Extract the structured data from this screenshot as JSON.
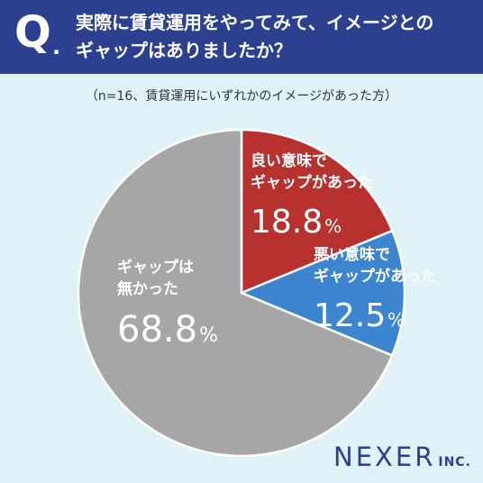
{
  "header": {
    "q_mark": "Q",
    "question_lines": [
      "実際に賃貸運用をやってみて、イメージとの",
      "ギャップはありましたか？"
    ]
  },
  "note": "（n=16、賃貸運用にいずれかのイメージがあった方）",
  "chart_data": {
    "type": "pie",
    "title": "実際に賃貸運用をやってみて、イメージとのギャップはありましたか？",
    "n": 16,
    "slices": [
      {
        "label_lines": [
          "良い意味で",
          "ギャップがあった"
        ],
        "value": 18.8,
        "display": "18.8",
        "unit": "%",
        "color": "#b7312f"
      },
      {
        "label_lines": [
          "悪い意味で",
          "ギャップがあった"
        ],
        "value": 12.5,
        "display": "12.5",
        "unit": "%",
        "color": "#3d86cf"
      },
      {
        "label_lines": [
          "ギャップは",
          "無かった"
        ],
        "value": 68.8,
        "display": "68.8",
        "unit": "%",
        "color": "#a6a6a6"
      }
    ]
  },
  "logo": {
    "main": "NEXER",
    "suffix": "INC."
  },
  "colors": {
    "header": "#2d3f8f",
    "background": "#dff2f8"
  }
}
